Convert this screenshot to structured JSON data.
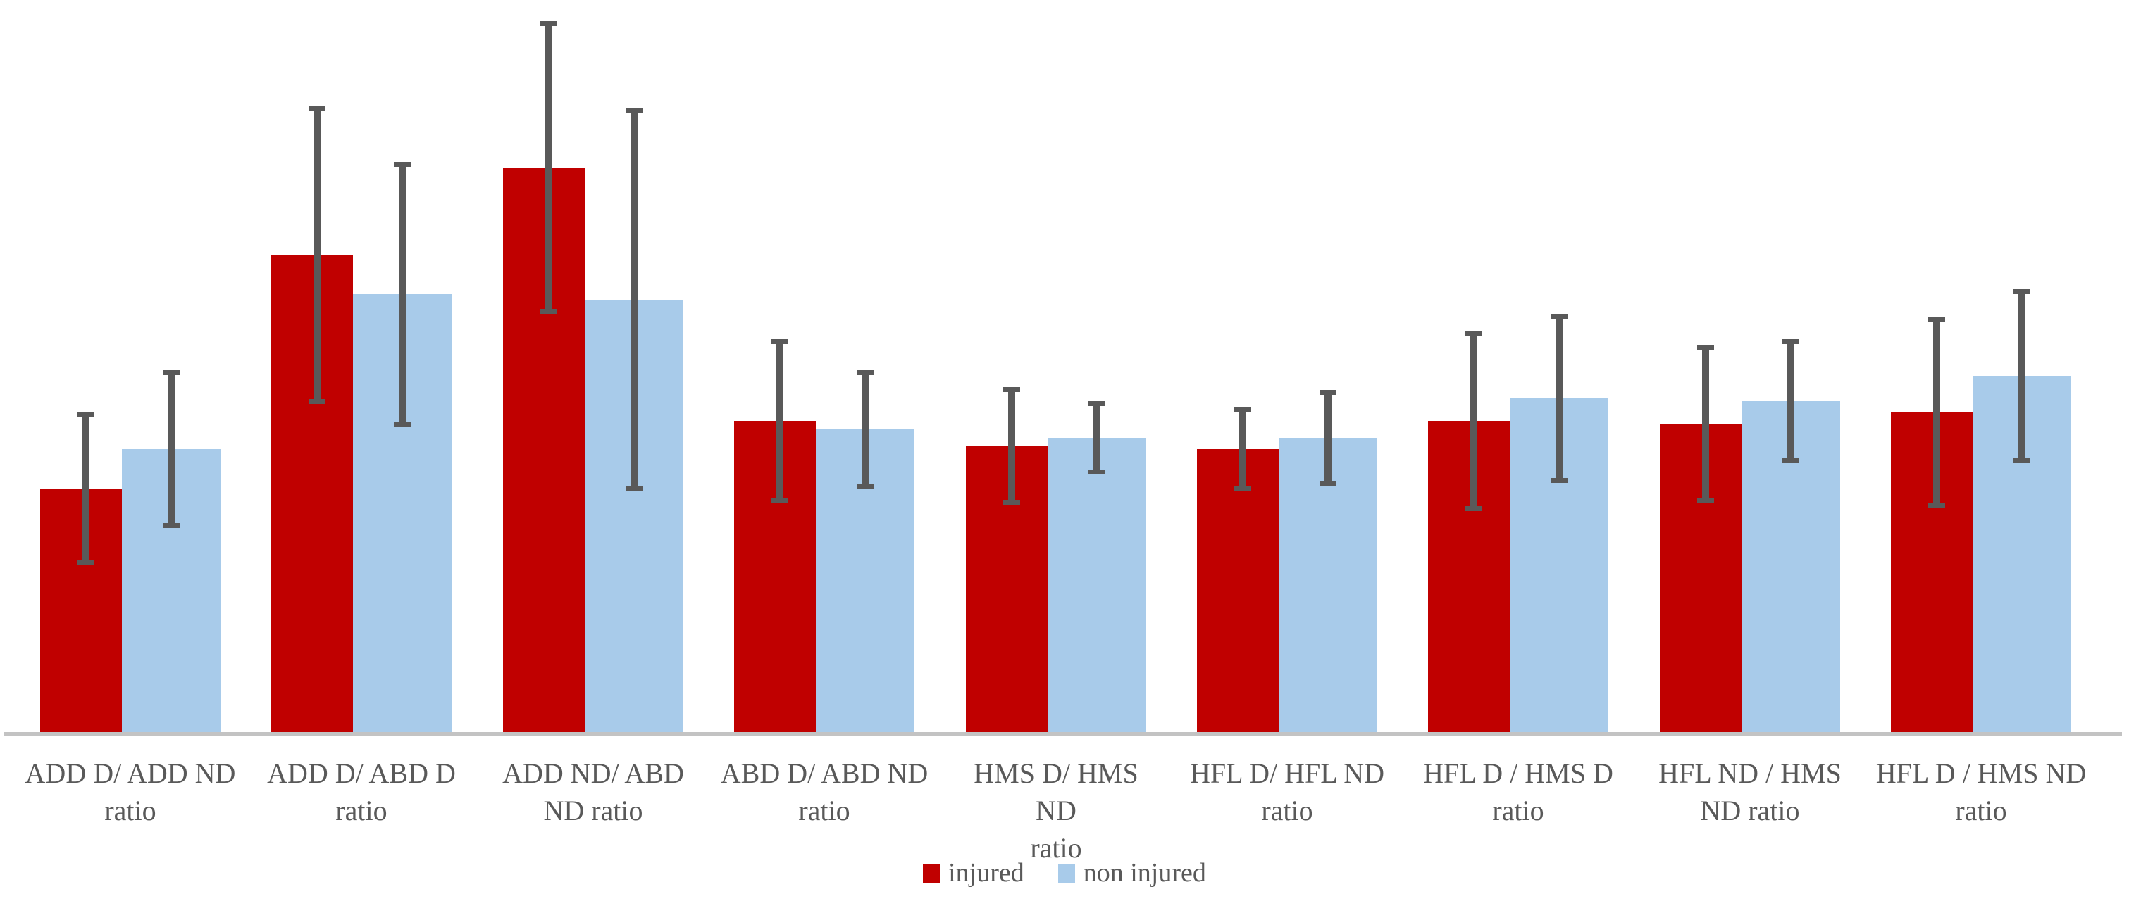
{
  "chart_data": {
    "type": "bar",
    "title": "",
    "categories": [
      "ADD D/ ADD ND\nratio",
      "ADD D/ ABD D\nratio",
      "ADD ND/ ABD\nND ratio",
      "ABD D/ ABD ND\nratio",
      "HMS D/ HMS ND\nratio",
      "HFL D/ HFL ND\nratio",
      "HFL D / HMS D\nratio",
      "HFL ND / HMS\nND ratio",
      "HFL D / HMS ND\nratio"
    ],
    "series": [
      {
        "name": "injured",
        "color": "#C00000",
        "values": [
          0.87,
          1.7,
          2.01,
          1.11,
          1.02,
          1.01,
          1.11,
          1.1,
          1.14
        ],
        "errors": [
          0.27,
          0.53,
          0.52,
          0.29,
          0.21,
          0.15,
          0.32,
          0.28,
          0.34
        ]
      },
      {
        "name": "non injured",
        "color": "#A8CBEA",
        "values": [
          1.01,
          1.56,
          1.54,
          1.08,
          1.05,
          1.05,
          1.19,
          1.18,
          1.27
        ],
        "errors": [
          0.28,
          0.47,
          0.68,
          0.21,
          0.13,
          0.17,
          0.3,
          0.22,
          0.31
        ]
      }
    ],
    "ylim": [
      0,
      2.6
    ],
    "y_axis_visible": false,
    "gridlines": false,
    "legend_position": "bottom",
    "error_bar_color": "#595959",
    "axis_line_color": "#C3C3C3",
    "label_color": "#595959"
  },
  "legend": {
    "items": [
      {
        "label": "injured",
        "color": "#C00000"
      },
      {
        "label": "non injured",
        "color": "#A8CBEA"
      }
    ]
  }
}
